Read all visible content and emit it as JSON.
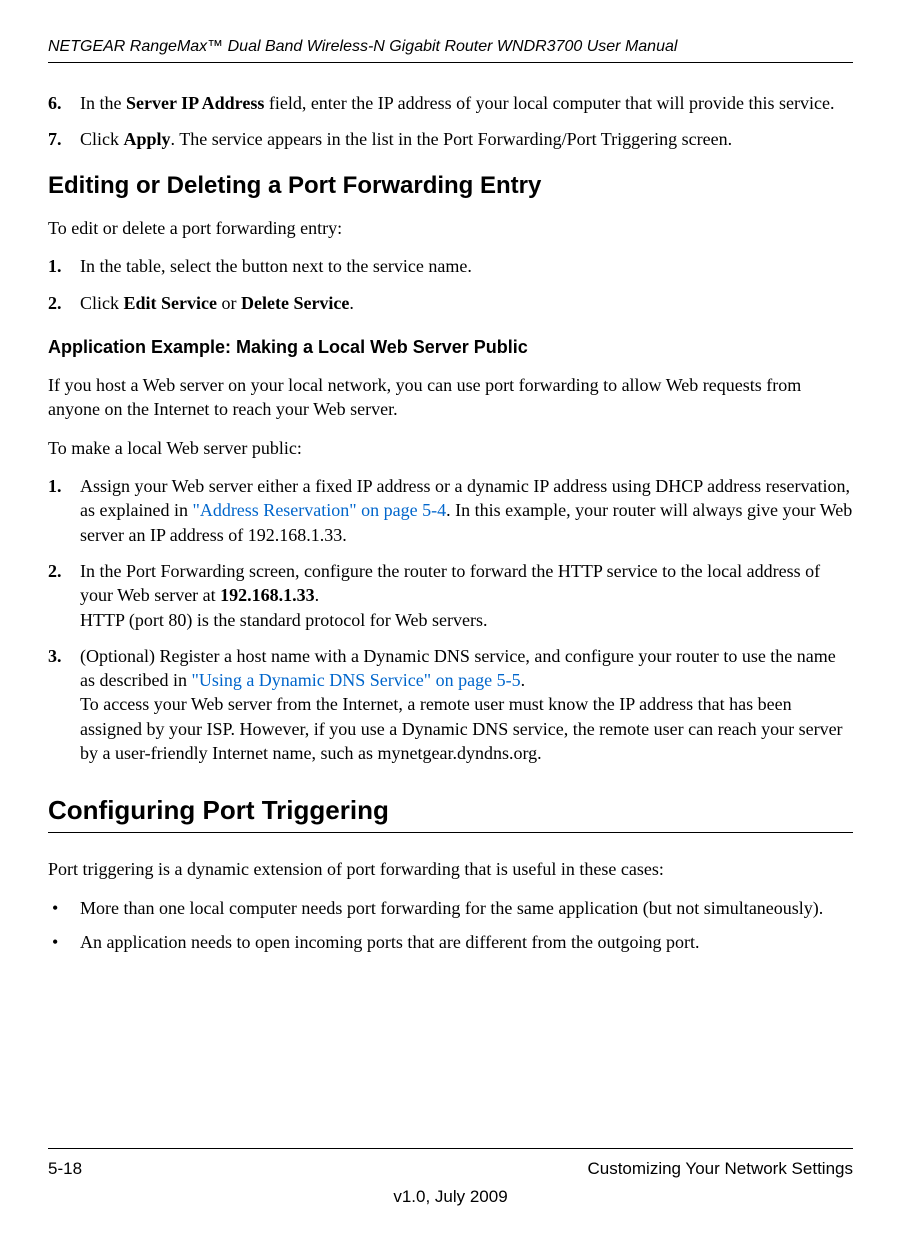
{
  "header": {
    "title": "NETGEAR RangeMax™ Dual Band Wireless-N Gigabit Router WNDR3700 User Manual"
  },
  "step6": {
    "num": "6.",
    "pre": "In the ",
    "bold": "Server IP Address",
    "post": " field, enter the IP address of your local computer that will provide this service."
  },
  "step7": {
    "num": "7.",
    "pre": "Click ",
    "bold": "Apply",
    "post": ". The service appears in the list in the Port Forwarding/Port Triggering screen."
  },
  "editing": {
    "heading": "Editing or Deleting a Port Forwarding Entry",
    "intro": "To edit or delete a port forwarding entry:",
    "s1": {
      "num": "1.",
      "text": "In the table, select the button next to the service name."
    },
    "s2": {
      "num": "2.",
      "pre": "Click ",
      "b1": "Edit Service",
      "mid": " or ",
      "b2": "Delete Service",
      "post": "."
    }
  },
  "example": {
    "heading": "Application Example: Making a Local Web Server Public",
    "p1": "If you host a Web server on your local network, you can use port forwarding to allow Web requests from anyone on the Internet to reach your Web server.",
    "p2": "To make a local Web server public:",
    "s1": {
      "num": "1.",
      "pre": "Assign your Web server either a fixed IP address or a dynamic IP address using DHCP address reservation, as explained in ",
      "link": "\"Address Reservation\" on page 5-4",
      "post": ". In this example, your router will always give your Web server an IP address of 192.168.1.33."
    },
    "s2": {
      "num": "2.",
      "pre": "In the Port Forwarding screen, configure the router to forward the HTTP service to the local address of your Web server at ",
      "bold": "192.168.1.33",
      "post1": ".",
      "line2": "HTTP (port 80) is the standard protocol for Web servers."
    },
    "s3": {
      "num": "3.",
      "pre": "(Optional) Register a host name with a Dynamic DNS service, and configure your router to use the name as described in ",
      "link": "\"Using a Dynamic DNS Service\" on page 5-5",
      "post1": ".",
      "line2": "To access your Web server from the Internet, a remote user must know the IP address that has been assigned by your ISP. However, if you use a Dynamic DNS service, the remote user can reach your server by a user-friendly Internet name, such as mynetgear.dyndns.org."
    }
  },
  "triggering": {
    "heading": "Configuring Port Triggering",
    "intro": "Port triggering is a dynamic extension of port forwarding that is useful in these cases:",
    "b1": "More than one local computer needs port forwarding for the same application (but not simultaneously).",
    "b2": "An application needs to open incoming ports that are different from the outgoing port."
  },
  "footer": {
    "page": "5-18",
    "section": "Customizing Your Network Settings",
    "version": "v1.0, July 2009"
  },
  "colors": {
    "link": "#0066cc",
    "text": "#000000",
    "background": "#ffffff"
  }
}
